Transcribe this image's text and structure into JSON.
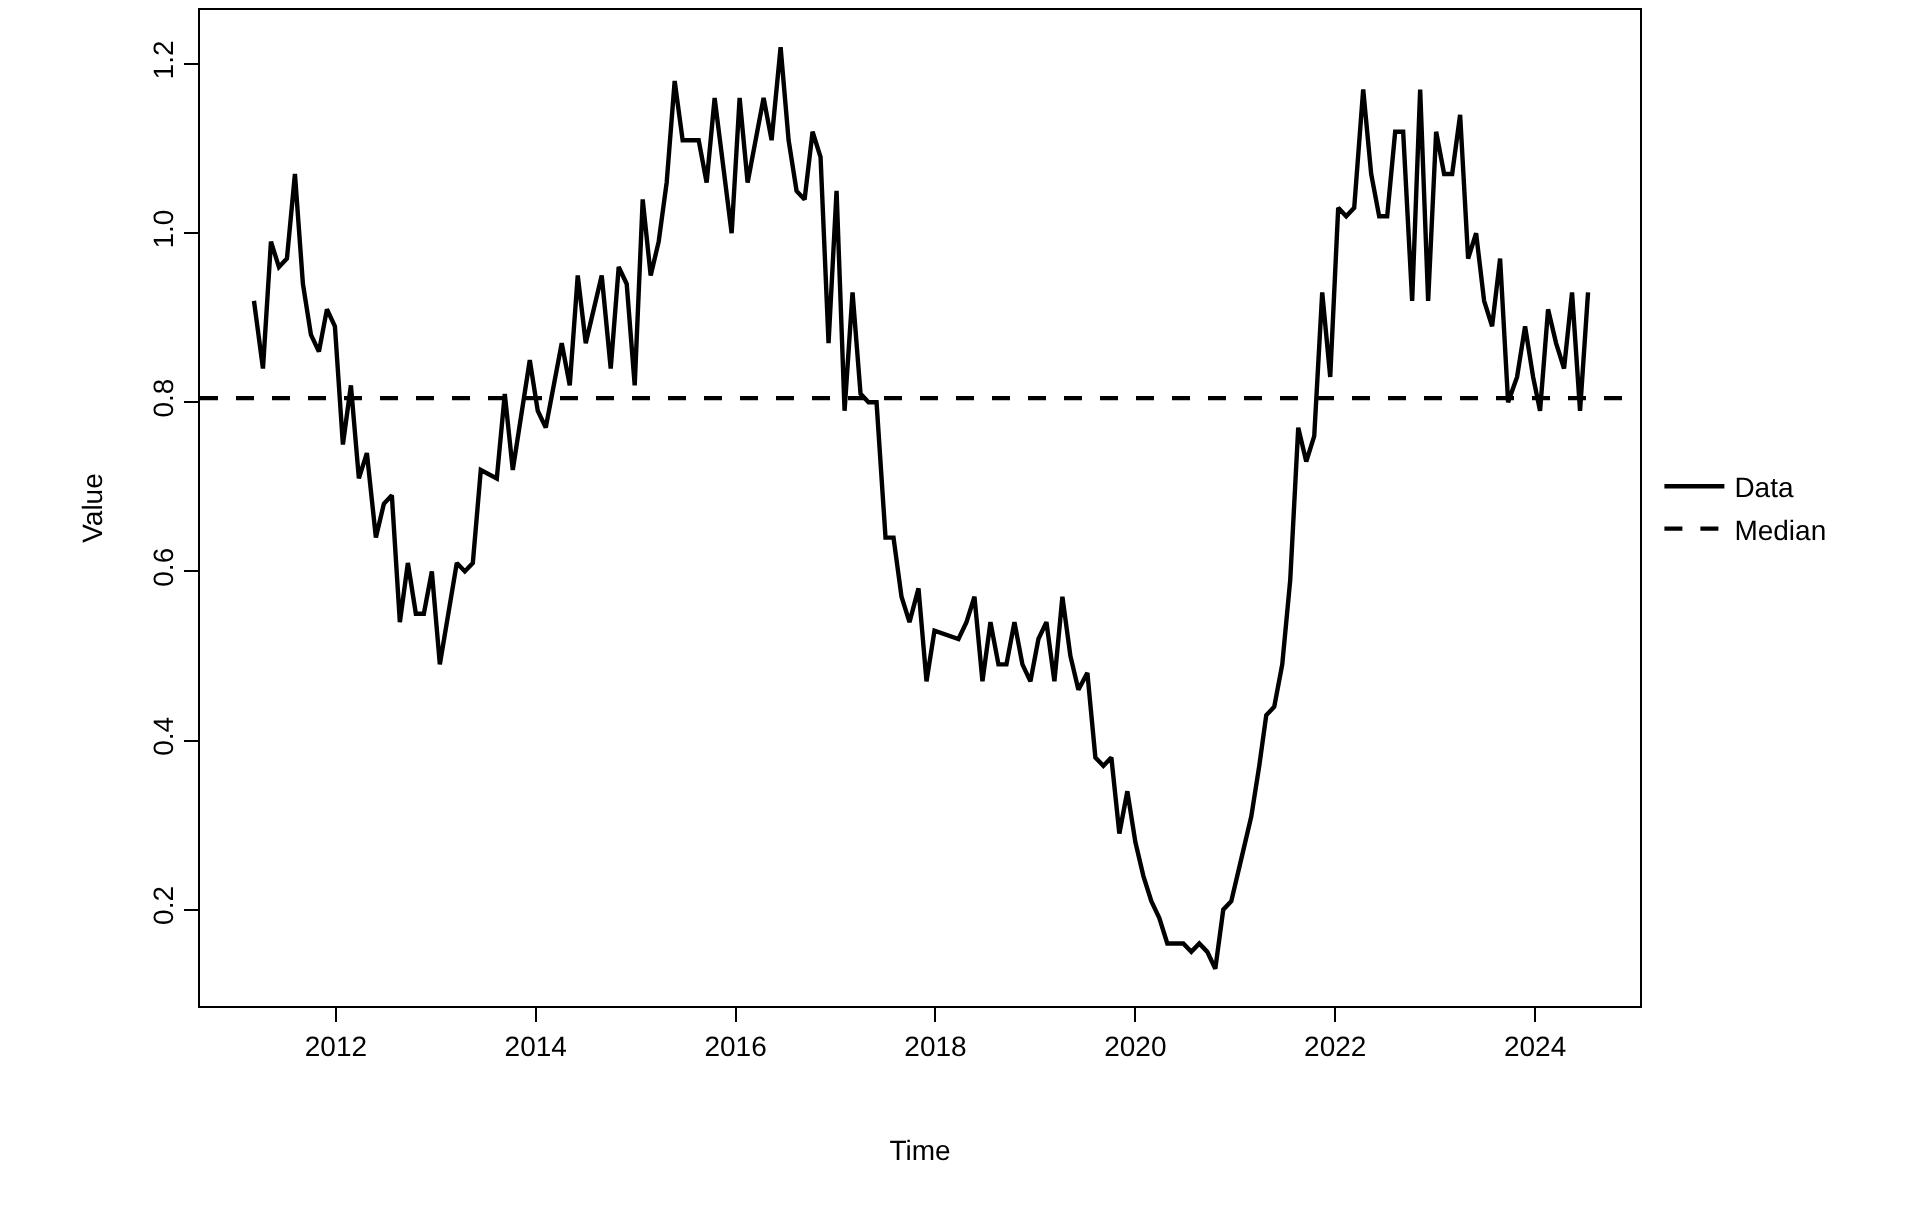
{
  "chart_data": {
    "type": "line",
    "xlabel": "Time",
    "ylabel": "Value",
    "x": [
      2011.18,
      2011.27,
      2011.35,
      2011.43,
      2011.51,
      2011.59,
      2011.67,
      2011.75,
      2011.83,
      2011.91,
      2011.99,
      2012.07,
      2012.15,
      2012.23,
      2012.31,
      2012.4,
      2012.48,
      2012.56,
      2012.64,
      2012.72,
      2012.8,
      2012.88,
      2012.96,
      2013.04,
      2013.21,
      2013.29,
      2013.37,
      2013.45,
      2013.61,
      2013.69,
      2013.77,
      2013.94,
      2014.02,
      2014.1,
      2014.26,
      2014.34,
      2014.42,
      2014.5,
      2014.66,
      2014.75,
      2014.83,
      2014.91,
      2014.99,
      2015.07,
      2015.15,
      2015.23,
      2015.31,
      2015.39,
      2015.47,
      2015.63,
      2015.71,
      2015.79,
      2015.96,
      2016.04,
      2016.12,
      2016.2,
      2016.28,
      2016.36,
      2016.45,
      2016.53,
      2016.61,
      2016.69,
      2016.77,
      2016.85,
      2016.93,
      2017.01,
      2017.09,
      2017.17,
      2017.25,
      2017.33,
      2017.41,
      2017.5,
      2017.58,
      2017.66,
      2017.74,
      2017.83,
      2017.91,
      2017.99,
      2018.23,
      2018.31,
      2018.39,
      2018.47,
      2018.55,
      2018.63,
      2018.71,
      2018.79,
      2018.87,
      2018.95,
      2019.03,
      2019.11,
      2019.19,
      2019.27,
      2019.35,
      2019.43,
      2019.52,
      2019.6,
      2019.68,
      2019.76,
      2019.84,
      2019.92,
      2020.0,
      2020.08,
      2020.16,
      2020.24,
      2020.32,
      2020.4,
      2020.48,
      2020.56,
      2020.64,
      2020.72,
      2020.8,
      2020.88,
      2020.96,
      2021.06,
      2021.16,
      2021.24,
      2021.31,
      2021.39,
      2021.47,
      2021.55,
      2021.63,
      2021.71,
      2021.79,
      2021.87,
      2021.95,
      2022.03,
      2022.11,
      2022.19,
      2022.28,
      2022.36,
      2022.44,
      2022.52,
      2022.6,
      2022.68,
      2022.77,
      2022.85,
      2022.93,
      2023.01,
      2023.09,
      2023.17,
      2023.25,
      2023.33,
      2023.41,
      2023.49,
      2023.57,
      2023.65,
      2023.73,
      2023.82,
      2023.9,
      2023.98,
      2024.05,
      2024.13,
      2024.21,
      2024.29,
      2024.37,
      2024.45,
      2024.53
    ],
    "series": [
      {
        "name": "Data",
        "color": "#000000",
        "values": [
          0.92,
          0.84,
          0.99,
          0.96,
          0.97,
          1.07,
          0.94,
          0.88,
          0.86,
          0.91,
          0.89,
          0.75,
          0.82,
          0.71,
          0.74,
          0.64,
          0.68,
          0.69,
          0.54,
          0.61,
          0.55,
          0.55,
          0.6,
          0.49,
          0.61,
          0.6,
          0.61,
          0.72,
          0.71,
          0.81,
          0.72,
          0.85,
          0.79,
          0.77,
          0.87,
          0.82,
          0.95,
          0.87,
          0.95,
          0.84,
          0.96,
          0.94,
          0.82,
          1.04,
          0.95,
          0.99,
          1.06,
          1.18,
          1.11,
          1.11,
          1.06,
          1.16,
          1.0,
          1.16,
          1.06,
          1.11,
          1.16,
          1.11,
          1.22,
          1.11,
          1.05,
          1.04,
          1.12,
          1.09,
          0.87,
          1.05,
          0.79,
          0.93,
          0.81,
          0.8,
          0.8,
          0.64,
          0.64,
          0.57,
          0.54,
          0.58,
          0.47,
          0.53,
          0.52,
          0.54,
          0.57,
          0.47,
          0.54,
          0.49,
          0.49,
          0.54,
          0.49,
          0.47,
          0.52,
          0.54,
          0.47,
          0.57,
          0.5,
          0.46,
          0.48,
          0.38,
          0.37,
          0.38,
          0.29,
          0.34,
          0.28,
          0.24,
          0.21,
          0.19,
          0.16,
          0.16,
          0.16,
          0.15,
          0.16,
          0.15,
          0.13,
          0.2,
          0.21,
          0.26,
          0.31,
          0.37,
          0.43,
          0.44,
          0.49,
          0.59,
          0.77,
          0.73,
          0.76,
          0.93,
          0.83,
          1.03,
          1.02,
          1.03,
          1.17,
          1.07,
          1.02,
          1.02,
          1.12,
          1.12,
          0.92,
          1.17,
          0.92,
          1.12,
          1.07,
          1.07,
          1.14,
          0.97,
          1.0,
          0.92,
          0.89,
          0.97,
          0.8,
          0.83,
          0.89,
          0.83,
          0.79,
          0.91,
          0.87,
          0.84,
          0.93,
          0.79,
          0.93
        ]
      }
    ],
    "ref_lines": [
      {
        "axis": "y",
        "value": 0.805,
        "label": "Median",
        "color": "#000000",
        "line_style": "dashed"
      }
    ],
    "xlim": [
      2010.64,
      2025.05
    ],
    "xticks": [
      2012,
      2014,
      2016,
      2018,
      2020,
      2022,
      2024
    ],
    "ylim": [
      0.086,
      1.264
    ],
    "yticks": [
      0.2,
      0.4,
      0.6,
      0.8,
      {
        "value": 1.0,
        "label": "1.0"
      },
      1.2
    ],
    "legend": "right",
    "line_style": "solid",
    "marker": "none"
  }
}
